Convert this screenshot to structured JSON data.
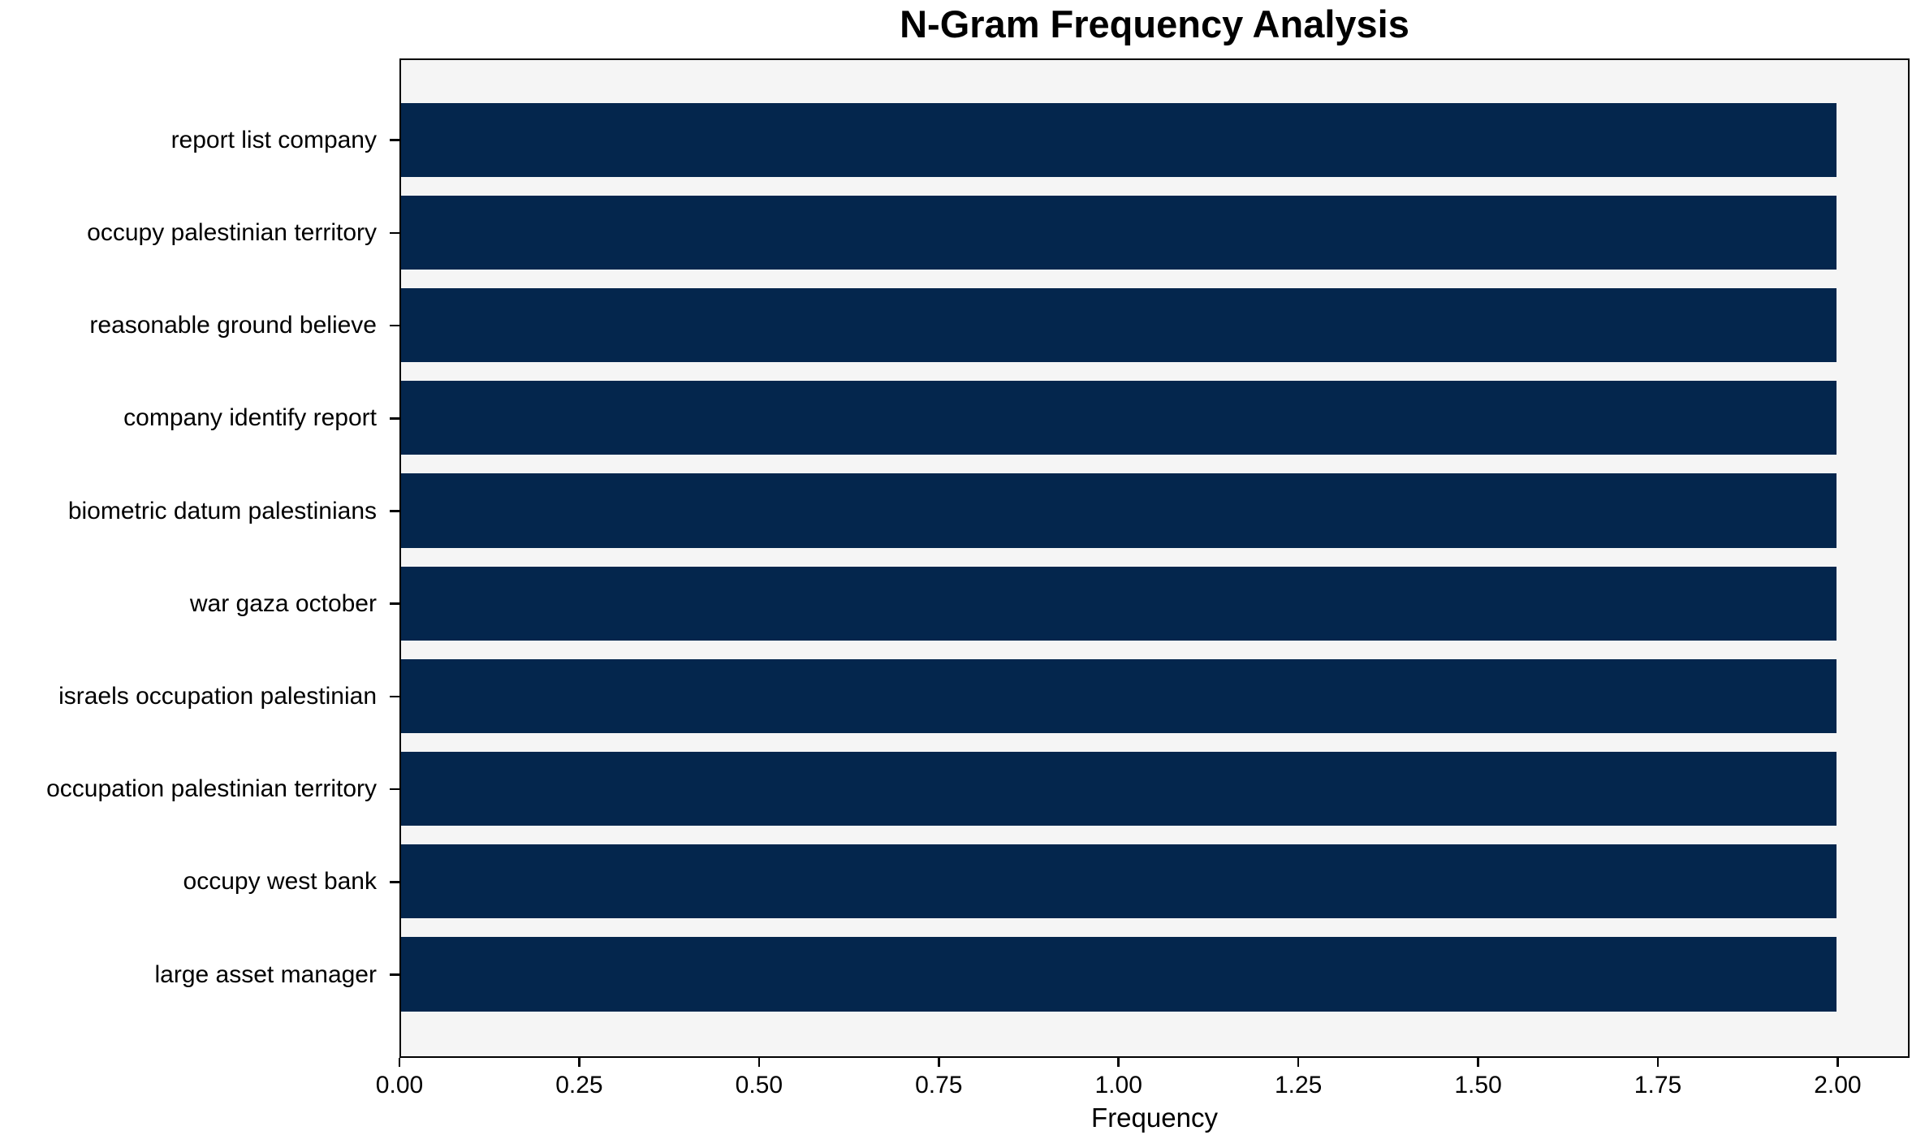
{
  "chart_data": {
    "type": "bar",
    "orientation": "horizontal",
    "title": "N-Gram Frequency Analysis",
    "categories": [
      "report list company",
      "occupy palestinian territory",
      "reasonable ground believe",
      "company identify report",
      "biometric datum palestinians",
      "war gaza october",
      "israels occupation palestinian",
      "occupation palestinian territory",
      "occupy west bank",
      "large asset manager"
    ],
    "values": [
      2,
      2,
      2,
      2,
      2,
      2,
      2,
      2,
      2,
      2
    ],
    "xlabel": "Frequency",
    "ylabel": "",
    "xlim": [
      0,
      2.1
    ],
    "xticks": [
      0,
      0.25,
      0.5,
      0.75,
      1.0,
      1.25,
      1.5,
      1.75,
      2.0
    ],
    "xtick_labels": [
      "0.00",
      "0.25",
      "0.50",
      "0.75",
      "1.00",
      "1.25",
      "1.50",
      "1.75",
      "2.00"
    ],
    "grid": false,
    "legend_position": "none",
    "colors": {
      "bar": "#04264d",
      "plot_background": "#f5f5f5",
      "figure_background": "#ffffff",
      "spine": "#000000",
      "text": "#000000"
    }
  }
}
